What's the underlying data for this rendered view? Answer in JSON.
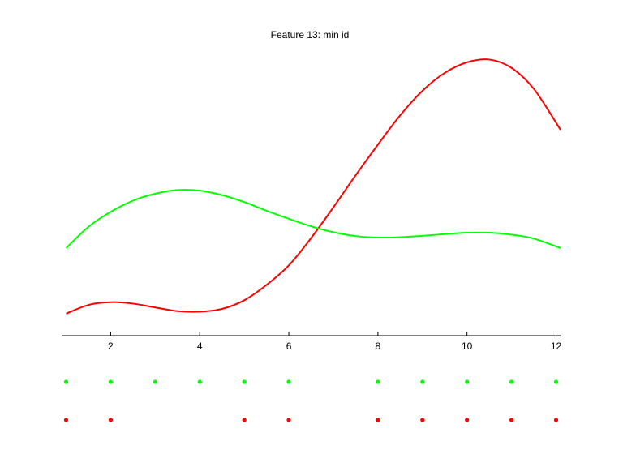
{
  "chart_data": {
    "type": "line",
    "title": "Feature 13: min id",
    "xlabel": "",
    "ylabel": "",
    "xlim": [
      0.9,
      12.1
    ],
    "ylim": [
      0,
      1
    ],
    "x_ticks": [
      2,
      4,
      6,
      8,
      10,
      12
    ],
    "grid": false,
    "y_axis_visible": false,
    "series": [
      {
        "color": "#ff0000",
        "x": [
          1,
          1.5,
          2,
          2.5,
          3,
          3.5,
          4,
          4.5,
          5,
          5.5,
          6,
          6.5,
          7,
          7.5,
          8,
          8.5,
          9,
          9.5,
          10,
          10.5,
          11,
          11.5,
          12.1
        ],
        "y": [
          0.079,
          0.11,
          0.12,
          0.115,
          0.101,
          0.088,
          0.086,
          0.096,
          0.127,
          0.182,
          0.252,
          0.35,
          0.46,
          0.575,
          0.685,
          0.79,
          0.878,
          0.942,
          0.98,
          0.99,
          0.96,
          0.885,
          0.738
        ]
      },
      {
        "color": "#00ff00",
        "x": [
          1,
          1.5,
          2,
          2.5,
          3,
          3.5,
          4,
          4.5,
          5,
          5.5,
          6,
          6.5,
          7,
          7.5,
          8,
          8.5,
          9,
          9.5,
          10,
          10.5,
          11,
          11.5,
          12.1
        ],
        "y": [
          0.314,
          0.39,
          0.444,
          0.484,
          0.509,
          0.522,
          0.52,
          0.504,
          0.479,
          0.448,
          0.419,
          0.392,
          0.371,
          0.357,
          0.352,
          0.353,
          0.358,
          0.364,
          0.369,
          0.369,
          0.362,
          0.348,
          0.314
        ]
      }
    ],
    "markers": [
      {
        "color": "#00ff00",
        "x": [
          1,
          2,
          3,
          4,
          5,
          6,
          8,
          9,
          10,
          11,
          12
        ]
      },
      {
        "color": "#ff0000",
        "x": [
          1,
          2,
          5,
          6,
          8,
          9,
          10,
          11,
          12
        ]
      }
    ]
  }
}
